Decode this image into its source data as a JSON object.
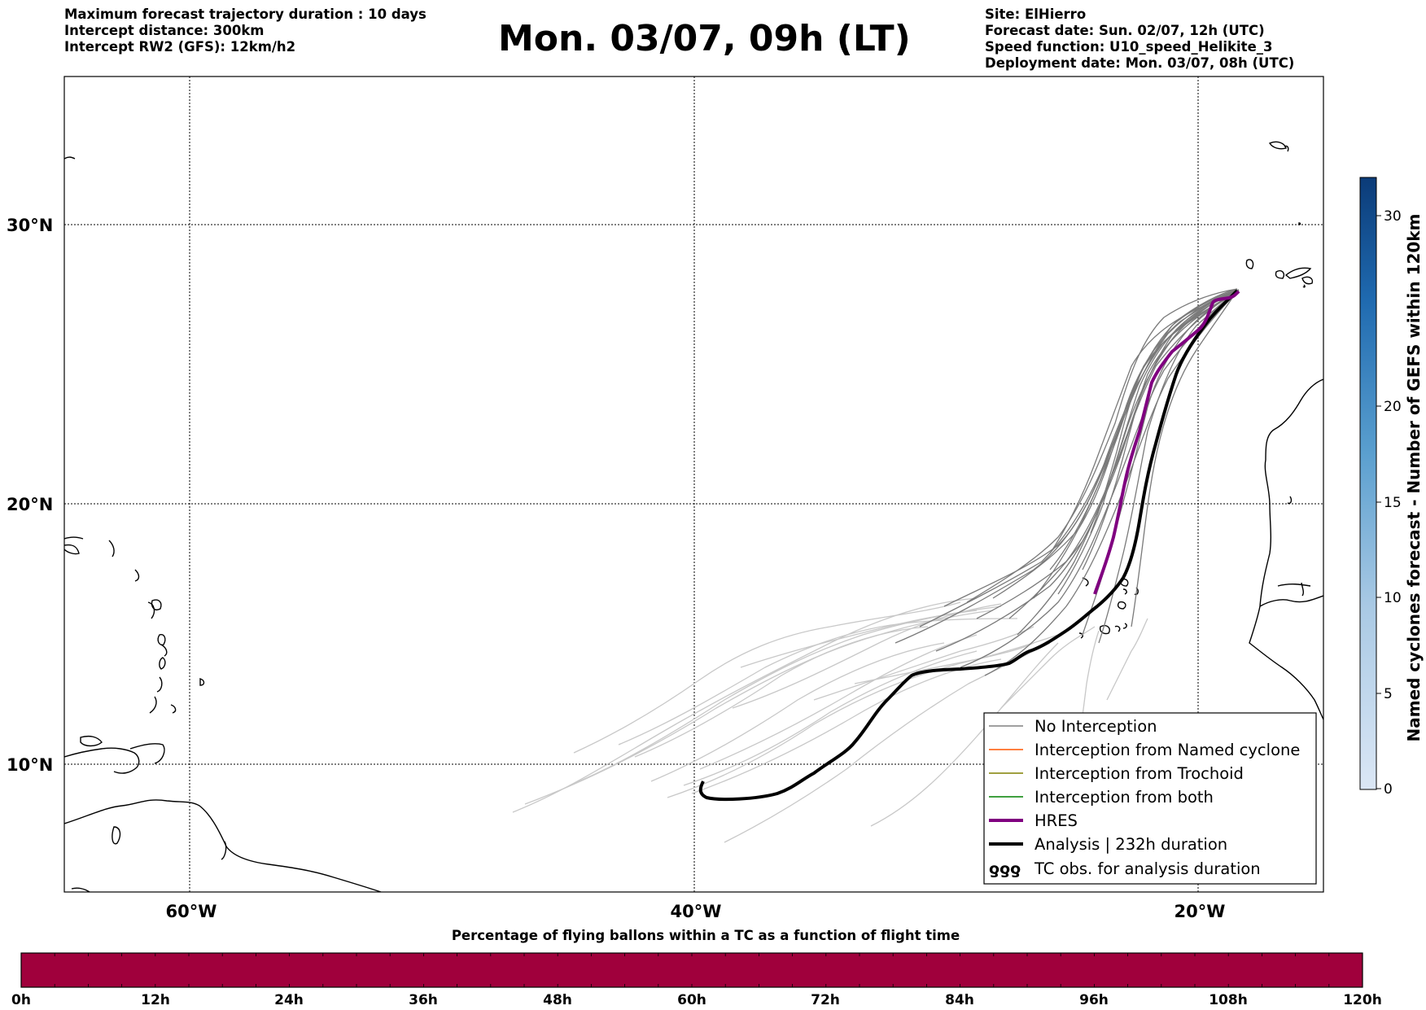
{
  "header": {
    "left_lines": [
      "Maximum forecast trajectory duration : 10 days",
      "Intercept distance: 300km",
      "Intercept RW2 (GFS):  12km/h2"
    ],
    "title": "Mon. 03/07, 09h (LT)",
    "right_lines": [
      "Site: ElHierro",
      "Forecast date: Sun. 02/07, 12h (UTC)",
      "Speed function: U10_speed_Helikite_3",
      "Deployment date: Mon. 03/07, 08h (UTC)"
    ]
  },
  "map": {
    "lat_labels": [
      "30°N",
      "20°N",
      "10°N"
    ],
    "lon_labels": [
      "60°W",
      "40°W",
      "20°W"
    ]
  },
  "legend": {
    "items": [
      {
        "label": "No Interception",
        "color": "#808080",
        "style": "thin"
      },
      {
        "label": "Interception from Named cyclone",
        "color": "#ff5500",
        "style": "thin"
      },
      {
        "label": "Interception from Trochoid",
        "color": "#808000",
        "style": "thin"
      },
      {
        "label": "Interception from both",
        "color": "#008000",
        "style": "thin"
      },
      {
        "label": "HRES",
        "color": "#800080",
        "style": "thick"
      },
      {
        "label": "Analysis | 232h duration",
        "color": "#000000",
        "style": "thick"
      },
      {
        "label": "TC obs. for analysis duration",
        "color": "#000000",
        "style": "symbol"
      }
    ],
    "symbol_text": "ƍƍƍ"
  },
  "colorbar_right": {
    "label": "Named cyclones forecast - Number of GEFS within 120km",
    "ticks": [
      "30",
      "20",
      "15",
      "10",
      "5",
      "0"
    ]
  },
  "colorbar_bottom": {
    "title": "Percentage of flying ballons within a TC as a function of flight time",
    "color": "#a0003c",
    "ticks": [
      "0h",
      "12h",
      "24h",
      "36h",
      "48h",
      "60h",
      "72h",
      "84h",
      "96h",
      "108h",
      "120h"
    ]
  }
}
